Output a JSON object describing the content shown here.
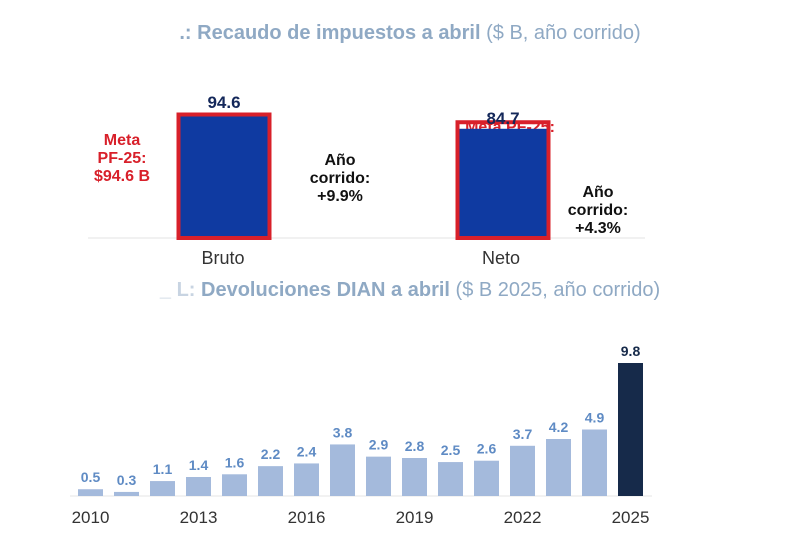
{
  "colors": {
    "navy_bar": "#0f3aa1",
    "meta_red": "#d8202a",
    "light_bar": "#a4badc",
    "highlight_bar": "#162a4a",
    "title_gray": "#8fa9c4",
    "value_light": "#5f8bc4"
  },
  "chart_data": [
    {
      "type": "bar",
      "title_prefix": ".:",
      "title_bold": "Recaudo de impuestos a abril",
      "title_unit": "($ B, año corrido)",
      "categories": [
        "Bruto",
        "Neto"
      ],
      "values": [
        94.6,
        84.7
      ],
      "value_labels": [
        "94.6",
        "84.7"
      ],
      "targets": [
        94.6,
        88.6
      ],
      "target_labels": [
        "Meta PF-25: $94.6 B",
        "Meta PF-25: $88.6 B"
      ],
      "target_label_bruto": {
        "line1": "Meta",
        "line2": "PF-25:",
        "line3": "$94.6 B"
      },
      "target_label_neto": {
        "line1": "Meta PF-25:",
        "line2": "$88.6 B"
      },
      "growth_bruto": {
        "line1": "Año",
        "line2": "corrido:",
        "line3": "+9.9%"
      },
      "growth_neto": {
        "line1": "Año",
        "line2": "corrido:",
        "line3": "+4.3%"
      },
      "ylim": [
        0,
        100
      ]
    },
    {
      "type": "bar",
      "title_prefix": "_ L:",
      "title_bold": "Devoluciones DIAN a abril",
      "title_unit": "($ B 2025, año corrido)",
      "categories": [
        "2010",
        "2011",
        "2012",
        "2013",
        "2014",
        "2015",
        "2016",
        "2017",
        "2018",
        "2019",
        "2020",
        "2021",
        "2022",
        "2023",
        "2024",
        "2025"
      ],
      "values": [
        0.5,
        0.3,
        1.1,
        1.4,
        1.6,
        2.2,
        2.4,
        3.8,
        2.9,
        2.8,
        2.5,
        2.6,
        3.7,
        4.2,
        4.9,
        9.8
      ],
      "value_labels": [
        "0.5",
        "0.3",
        "1.1",
        "1.4",
        "1.6",
        "2.2",
        "2.4",
        "3.8",
        "2.9",
        "2.8",
        "2.5",
        "2.6",
        "3.7",
        "4.2",
        "4.9",
        "9.8"
      ],
      "xtick_labels": [
        "2010",
        "2013",
        "2016",
        "2019",
        "2022",
        "2025"
      ],
      "highlight": "2025",
      "ylim": [
        0,
        10
      ]
    }
  ]
}
